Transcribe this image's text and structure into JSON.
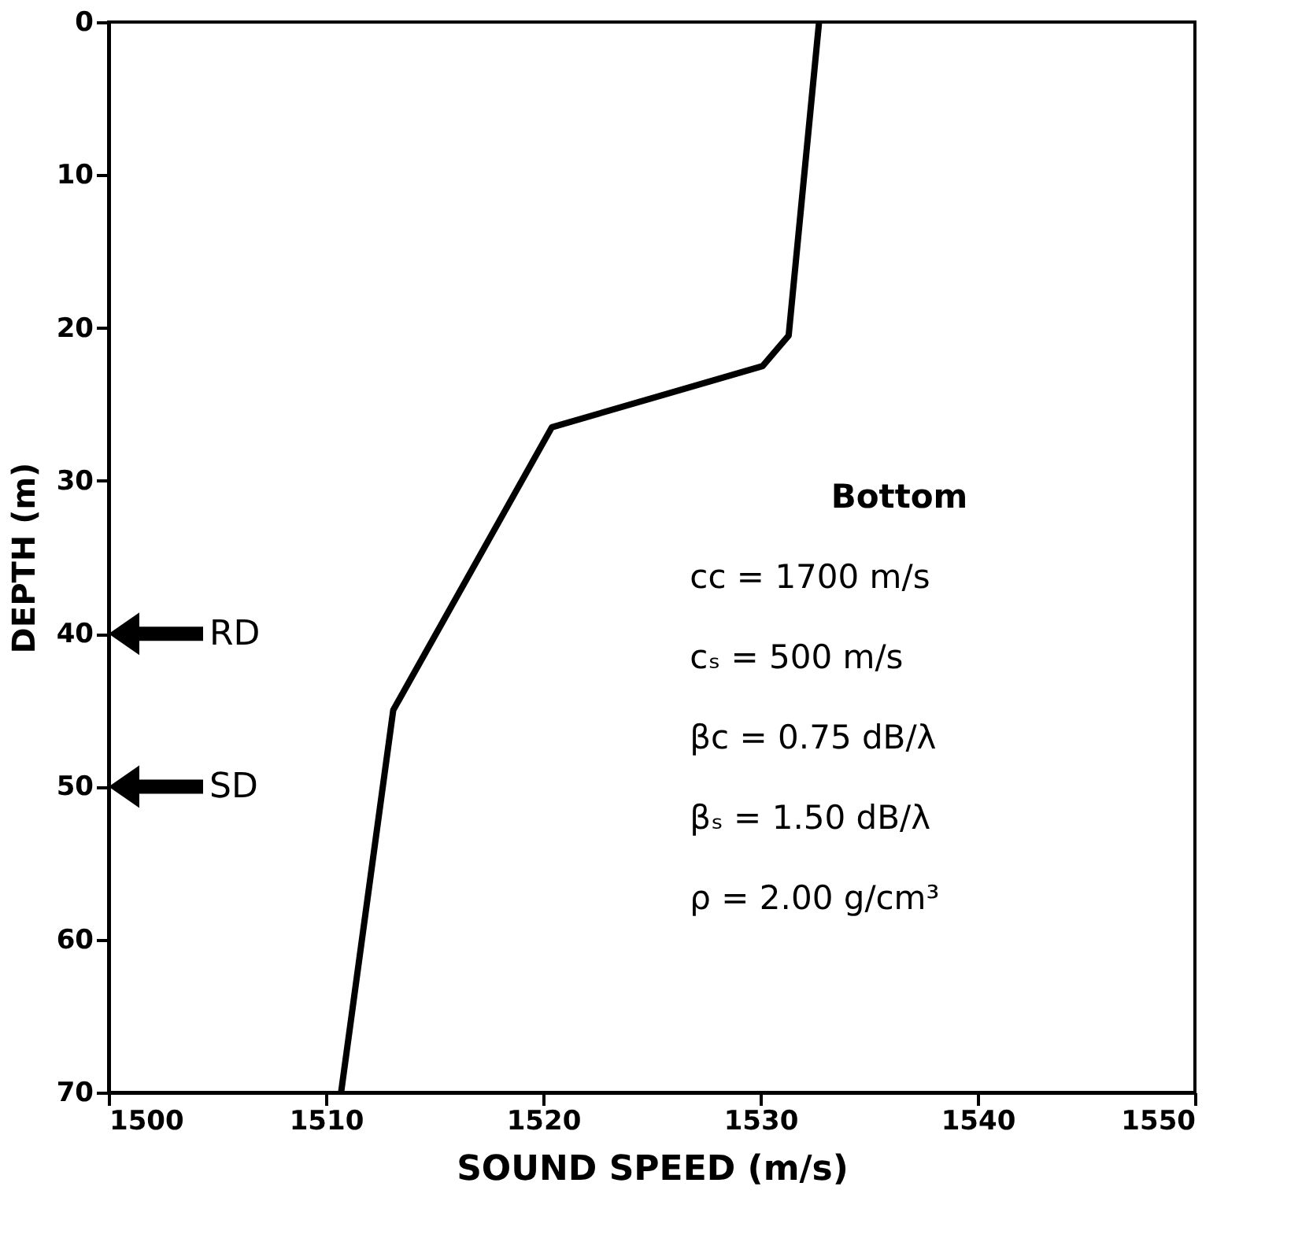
{
  "chart_data": {
    "type": "line",
    "xlabel": "SOUND SPEED (m/s)",
    "ylabel": "DEPTH (m)",
    "series": [
      {
        "color": "#000000",
        "x": [
          1532.7,
          1531.3,
          1530.1,
          1520.4,
          1513.1,
          1510.7
        ],
        "values": [
          0,
          20.5,
          22.5,
          26.5,
          45,
          70
        ]
      }
    ],
    "xlim": [
      1500,
      1550
    ],
    "xticks": [
      1500,
      1510,
      1520,
      1530,
      1540,
      1550
    ],
    "ylim": [
      70,
      0
    ],
    "yticks": [
      0,
      10,
      20,
      30,
      40,
      50,
      60,
      70
    ],
    "grid": false,
    "marker": "none",
    "line_style": "solid",
    "annotations": [
      "RD",
      "SD",
      "Bottom",
      "cc = 1700 m/s",
      "cₛ =  500 m/s",
      "βc =  0.75 dB/λ",
      "βₛ =  1.50 dB/λ",
      "ρ  =  2.00 g/cm³"
    ]
  }
}
